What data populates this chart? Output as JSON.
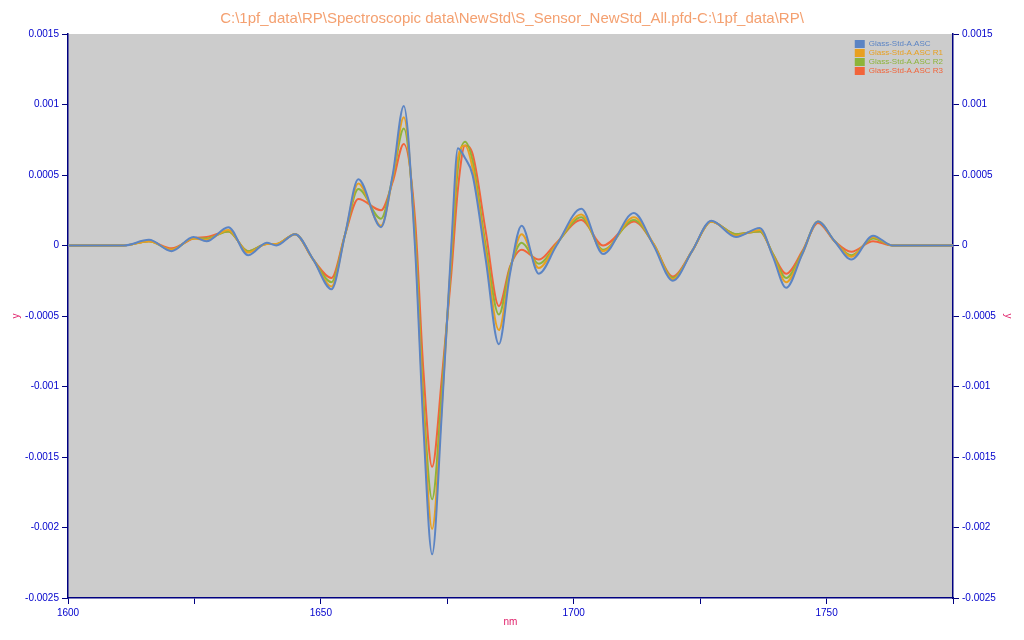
{
  "chart_data": {
    "type": "line",
    "title": "C:\\1pf_data\\RP\\Spectroscopic data\\NewStd\\S_Sensor_NewStd_All.pfd-C:\\1pf_data\\RP\\",
    "xlabel": "nm",
    "ylabel": "y",
    "y2label": "y",
    "x": [
      1600,
      1611,
      1616,
      1620.5,
      1624.8,
      1627.4,
      1631.7,
      1635.6,
      1639.3,
      1641.2,
      1644.9,
      1648.5,
      1652.1,
      1654.8,
      1657.4,
      1661.9,
      1664.2,
      1666.4,
      1668.6,
      1670.3,
      1672,
      1673.9,
      1675.8,
      1677.1,
      1678.5,
      1680,
      1682.6,
      1685.2,
      1687.4,
      1689.7,
      1693.1,
      1696.6,
      1701.5,
      1705.8,
      1711.9,
      1715.8,
      1719.6,
      1723.4,
      1727.2,
      1732.1,
      1736.8,
      1739.4,
      1742,
      1745.2,
      1748.3,
      1751.6,
      1754.9,
      1759.2,
      1763,
      1775
    ],
    "series": [
      {
        "name": "Glass-Std-A.ASC",
        "color": "#5b84c4",
        "values": [
          0,
          0,
          4e-05,
          -4e-05,
          6e-05,
          3e-05,
          0.00013,
          -7e-05,
          2e-05,
          0,
          8e-05,
          -0.0001,
          -0.00031,
          8e-05,
          0.00047,
          0.00013,
          0.0005,
          0.00099,
          0,
          -0.0013,
          -0.00219,
          -0.0012,
          0,
          0.00069,
          0.00062,
          0.0005,
          -0.0001,
          -0.0007,
          -0.0002,
          0.00014,
          -0.0002,
          0,
          0.00026,
          -6e-05,
          0.00023,
          0,
          -0.00025,
          -4e-05,
          0.000175,
          6e-05,
          0.000125,
          -8e-05,
          -0.0003,
          -6e-05,
          0.00017,
          3e-05,
          -0.0001,
          7e-05,
          0,
          0
        ]
      },
      {
        "name": "Glass-Std-A.ASC R1",
        "color": "#e8a020",
        "values": [
          0,
          0,
          3e-05,
          -3e-05,
          5e-05,
          4e-05,
          0.00011,
          -5e-05,
          1e-05,
          1e-05,
          8e-05,
          -0.0001,
          -0.00029,
          8e-05,
          0.00044,
          0.00014,
          0.00048,
          0.00091,
          5e-05,
          -0.0012,
          -0.00201,
          -0.00115,
          -5e-05,
          0.00062,
          0.00071,
          0.00055,
          -5e-05,
          -0.0006,
          -0.00018,
          8e-05,
          -0.00016,
          1e-05,
          0.00022,
          -4e-05,
          0.0002,
          1e-05,
          -0.00024,
          -4e-05,
          0.00017,
          7e-05,
          0.00011,
          -7e-05,
          -0.00026,
          -6e-05,
          0.00017,
          3e-05,
          -8e-05,
          6e-05,
          0,
          0
        ]
      },
      {
        "name": "Glass-Std-A.ASC R2",
        "color": "#8db43a",
        "values": [
          0,
          0,
          3e-05,
          -3e-05,
          5e-05,
          5e-05,
          0.0001,
          -4e-05,
          1e-05,
          1e-05,
          8e-05,
          -0.0001,
          -0.00026,
          8e-05,
          0.0004,
          0.00019,
          0.00048,
          0.00083,
          0.0001,
          -0.0011,
          -0.0018,
          -0.00105,
          -0.0001,
          0.00055,
          0.000735,
          0.0006,
          0,
          -0.00049,
          -0.00016,
          2e-05,
          -0.00013,
          1e-05,
          0.0002,
          -3e-05,
          0.00018,
          1e-05,
          -0.00023,
          -4e-05,
          0.00017,
          8e-05,
          0.0001,
          -6e-05,
          -0.00023,
          -5e-05,
          0.00017,
          3e-05,
          -7e-05,
          5e-05,
          0,
          0
        ]
      },
      {
        "name": "Glass-Std-A.ASC R3",
        "color": "#f2643a",
        "values": [
          0,
          0,
          3e-05,
          -2e-05,
          5e-05,
          6e-05,
          0.0001,
          -4e-05,
          1e-05,
          1e-05,
          8e-05,
          -0.0001,
          -0.00023,
          8e-05,
          0.00033,
          0.00025,
          0.00045,
          0.00072,
          0.0002,
          -0.0009,
          -0.00157,
          -0.00095,
          -0.0002,
          0.0004,
          0.00071,
          0.00065,
          0.0001,
          -0.00043,
          -0.00015,
          -3e-05,
          -0.0001,
          2e-05,
          0.00018,
          0,
          0.00017,
          1e-05,
          -0.00022,
          -4e-05,
          0.00017,
          8e-05,
          0.0001,
          -6e-05,
          -0.0002,
          -4e-05,
          0.00016,
          3e-05,
          -4.5e-05,
          3e-05,
          0,
          0
        ]
      }
    ],
    "xlim": [
      1600,
      1775
    ],
    "xticks": [
      1600,
      {
        "value": 1625,
        "label": null
      },
      1650,
      {
        "value": 1675,
        "label": null
      },
      1700,
      {
        "value": 1725,
        "label": null
      },
      1750,
      {
        "value": 1775,
        "label": null
      }
    ],
    "ylim": [
      -0.0025,
      0.0015
    ],
    "yticks": [
      -0.0025,
      -0.002,
      -0.0015,
      -0.001,
      -0.0005,
      0,
      0.0005,
      0.001,
      0.0015
    ],
    "y2lim": [
      -0.0025,
      0.0015
    ],
    "y2ticks": [
      -0.0025,
      -0.002,
      -0.0015,
      -0.001,
      -0.0005,
      0,
      0.0005,
      0.001,
      0.0015
    ],
    "grid": false,
    "legend": "top right",
    "marker": "none",
    "line_style": "solid"
  }
}
